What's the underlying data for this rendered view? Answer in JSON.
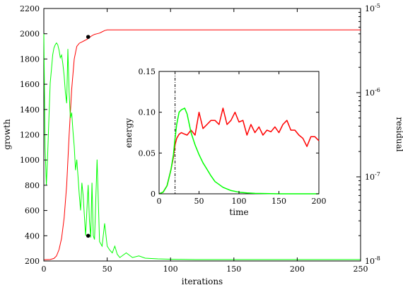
{
  "chart_data": [
    {
      "type": "line",
      "xlabel": "iterations",
      "ylabel": "growth",
      "y2label": "residual",
      "xlim": [
        0,
        250
      ],
      "ylim": [
        200,
        2200
      ],
      "y2lim": [
        1e-08,
        1e-05
      ],
      "y2scale": "log",
      "xticks": [
        "0",
        "50",
        "100",
        "150",
        "200",
        "250"
      ],
      "yticks": [
        "200",
        "400",
        "600",
        "800",
        "1000",
        "1200",
        "1400",
        "1600",
        "1800",
        "2000",
        "2200"
      ],
      "y2ticks": [
        {
          "base": "10",
          "exp": "-8",
          "value": 1e-08
        },
        {
          "base": "10",
          "exp": "-7",
          "value": 1e-07
        },
        {
          "base": "10",
          "exp": "-6",
          "value": 1e-06
        },
        {
          "base": "10",
          "exp": "-5",
          "value": 1e-05
        }
      ],
      "series": [
        {
          "color": "#ff0000",
          "axis": "left",
          "x": [
            0,
            5,
            8,
            10,
            12,
            14,
            16,
            18,
            20,
            22,
            24,
            26,
            28,
            30,
            32,
            34,
            36,
            38,
            40,
            42,
            44,
            46,
            48,
            50,
            60,
            100,
            150,
            200,
            250
          ],
          "y": [
            210,
            212,
            220,
            240,
            290,
            380,
            540,
            800,
            1200,
            1560,
            1800,
            1900,
            1925,
            1935,
            1945,
            1955,
            1970,
            1985,
            1995,
            2000,
            2005,
            2015,
            2025,
            2030,
            2030,
            2030,
            2030,
            2030,
            2030
          ]
        },
        {
          "color": "#00ff00",
          "axis": "right",
          "x": [
            0,
            1,
            2,
            3,
            4,
            5,
            6,
            7,
            8,
            9,
            10,
            11,
            12,
            13,
            14,
            15,
            16,
            17,
            18,
            19,
            20,
            21,
            22,
            23,
            24,
            25,
            26,
            27,
            28,
            29,
            30,
            31,
            32,
            33,
            34,
            35,
            36,
            37,
            38,
            39,
            40,
            42,
            44,
            46,
            48,
            50,
            52,
            54,
            56,
            58,
            60,
            65,
            70,
            75,
            80,
            90,
            100,
            120,
            150,
            200,
            250
          ],
          "y": [
            5e-06,
            2.2e-07,
            8e-08,
            1.8e-07,
            5e-07,
            1.3e-06,
            1.9e-06,
            2.8e-06,
            3.4e-06,
            3.7e-06,
            3.9e-06,
            3.7e-06,
            3.2e-06,
            2.6e-06,
            2.8e-06,
            2.2e-06,
            1.6e-06,
            1e-06,
            7.5e-07,
            3.3e-06,
            1e-06,
            5e-07,
            5.8e-07,
            3.5e-07,
            2.3e-07,
            1.2e-07,
            1.6e-07,
            1e-07,
            6e-08,
            4e-08,
            8.5e-08,
            6e-08,
            3.5e-08,
            2e-08,
            4e-08,
            8e-08,
            3e-08,
            1.9e-08,
            8.5e-08,
            2e-08,
            1.8e-08,
            1.6e-07,
            1.7e-08,
            1.5e-08,
            2.8e-08,
            1.5e-08,
            1.35e-08,
            1.25e-08,
            1.5e-08,
            1.2e-08,
            1.1e-08,
            1.25e-08,
            1.1e-08,
            1.15e-08,
            1.08e-08,
            1.06e-08,
            1.05e-08,
            1.04e-08,
            1.04e-08,
            1.04e-08,
            1.04e-08
          ]
        }
      ],
      "markers": [
        {
          "color": "#000000",
          "x": 35,
          "y": 1975
        },
        {
          "color": "#000000",
          "x": 35,
          "y": 400
        }
      ]
    },
    {
      "type": "line",
      "xlabel": "time",
      "ylabel": "energy",
      "xlim": [
        0,
        200
      ],
      "ylim": [
        0,
        0.15
      ],
      "xticks": [
        "0",
        "50",
        "100",
        "150",
        "200"
      ],
      "yticks": [
        "0",
        "0.05",
        "0.10",
        "0.15"
      ],
      "vline": {
        "x": 20,
        "style": "dash-dot",
        "color": "#000000"
      },
      "series": [
        {
          "color": "#ff0000",
          "x": [
            0,
            5,
            10,
            15,
            18,
            20,
            22,
            25,
            28,
            30,
            35,
            40,
            45,
            50,
            55,
            60,
            65,
            70,
            75,
            80,
            85,
            90,
            95,
            100,
            105,
            110,
            115,
            120,
            125,
            130,
            135,
            140,
            145,
            150,
            155,
            160,
            165,
            170,
            175,
            180,
            185,
            190,
            195,
            200
          ],
          "y": [
            0,
            0.002,
            0.01,
            0.03,
            0.045,
            0.06,
            0.068,
            0.073,
            0.075,
            0.074,
            0.072,
            0.078,
            0.072,
            0.1,
            0.08,
            0.085,
            0.09,
            0.09,
            0.085,
            0.105,
            0.085,
            0.09,
            0.1,
            0.088,
            0.09,
            0.072,
            0.085,
            0.075,
            0.082,
            0.072,
            0.078,
            0.076,
            0.082,
            0.075,
            0.085,
            0.09,
            0.078,
            0.078,
            0.072,
            0.068,
            0.058,
            0.07,
            0.07,
            0.065
          ]
        },
        {
          "color": "#00ff00",
          "x": [
            0,
            5,
            10,
            15,
            18,
            20,
            22,
            25,
            28,
            30,
            32,
            35,
            40,
            45,
            50,
            55,
            60,
            65,
            70,
            80,
            90,
            100,
            110,
            120,
            150,
            200
          ],
          "y": [
            0,
            0.002,
            0.01,
            0.03,
            0.048,
            0.068,
            0.085,
            0.1,
            0.103,
            0.104,
            0.105,
            0.098,
            0.075,
            0.06,
            0.048,
            0.038,
            0.03,
            0.022,
            0.015,
            0.008,
            0.004,
            0.002,
            0.001,
            0.0005,
            0,
            0
          ]
        }
      ]
    }
  ]
}
